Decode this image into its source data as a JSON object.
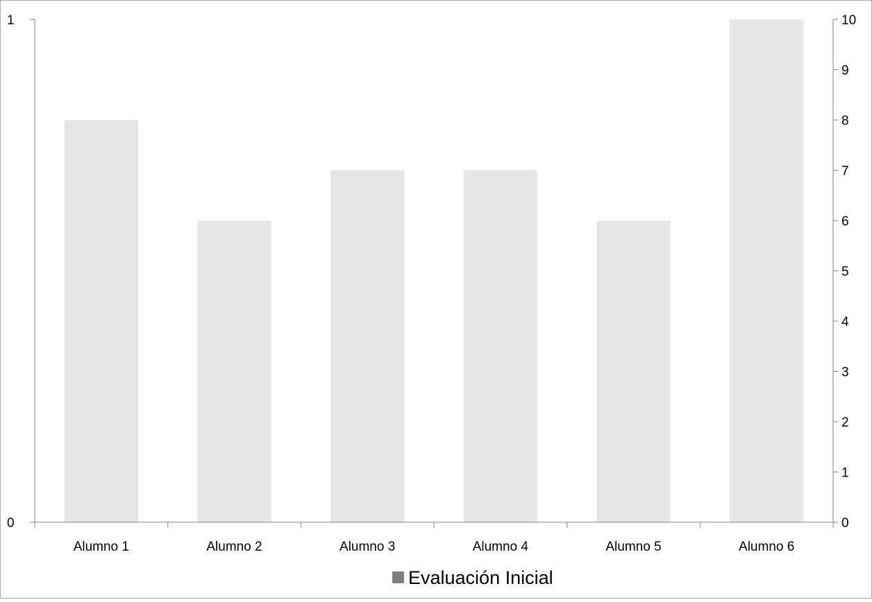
{
  "chart_data": {
    "type": "bar",
    "categories": [
      "Alumno 1",
      "Alumno 2",
      "Alumno 3",
      "Alumno 4",
      "Alumno 5",
      "Alumno 6"
    ],
    "series": [
      {
        "name": "Evaluación Inicial",
        "values": [
          8,
          6,
          7,
          7,
          6,
          10
        ],
        "axis": "right"
      }
    ],
    "y_left": {
      "ylim": [
        0,
        1
      ],
      "ticks": [
        0,
        1
      ]
    },
    "y_right": {
      "ylim": [
        0,
        10
      ],
      "ticks": [
        0,
        1,
        2,
        3,
        4,
        5,
        6,
        7,
        8,
        9,
        10
      ]
    },
    "title": "",
    "xlabel": "",
    "ylabel": "",
    "grid": false,
    "legend": "bottom",
    "colors": {
      "bar": "#e6e6e6",
      "legend_swatch": "#808080",
      "axis": "#808080"
    }
  }
}
